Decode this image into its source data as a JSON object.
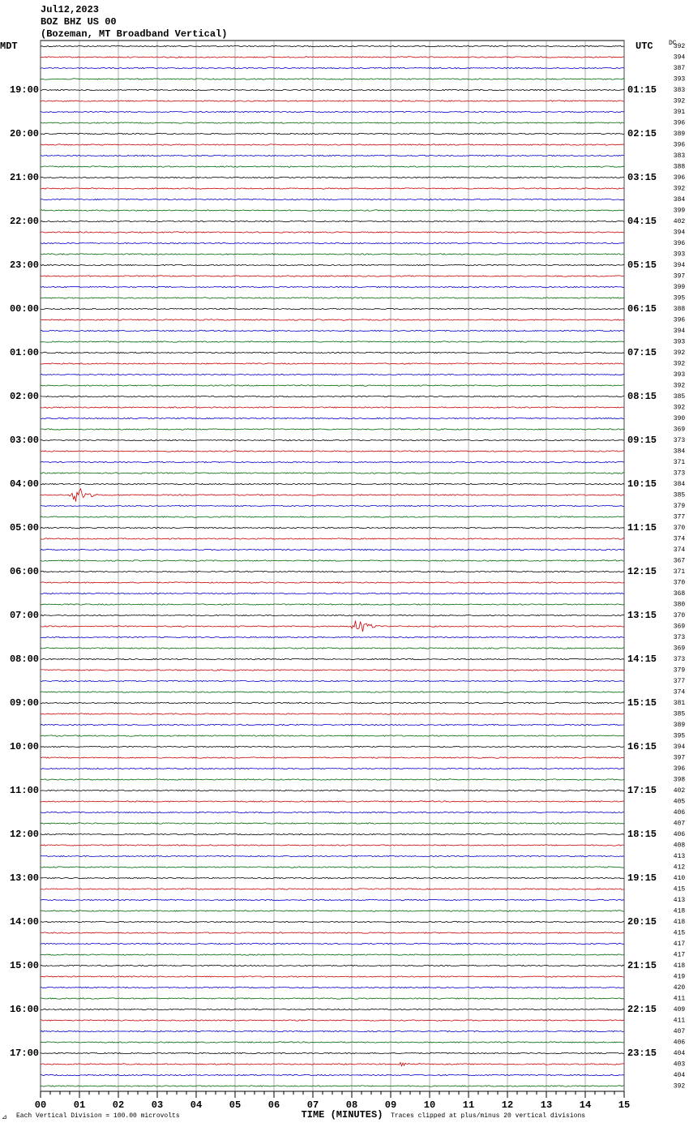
{
  "header": {
    "date": "Jul12,2023",
    "station": "BOZ BHZ US 00",
    "location": "(Bozeman, MT Broadband Vertical)"
  },
  "left_label": "MDT",
  "right_label": "UTC",
  "dc_label": "DC",
  "mdt_hours": [
    "19:00",
    "20:00",
    "21:00",
    "22:00",
    "23:00",
    "00:00",
    "01:00",
    "02:00",
    "03:00",
    "04:00",
    "05:00",
    "06:00",
    "07:00",
    "08:00",
    "09:00",
    "10:00",
    "11:00",
    "12:00",
    "13:00",
    "14:00",
    "15:00",
    "16:00",
    "17:00"
  ],
  "utc_hours": [
    "01:15",
    "02:15",
    "03:15",
    "04:15",
    "05:15",
    "06:15",
    "07:15",
    "08:15",
    "09:15",
    "10:15",
    "11:15",
    "12:15",
    "13:15",
    "14:15",
    "15:15",
    "16:15",
    "17:15",
    "18:15",
    "19:15",
    "20:15",
    "21:15",
    "22:15",
    "23:15"
  ],
  "dc_values": [
    392,
    394,
    387,
    393,
    383,
    392,
    391,
    396,
    389,
    396,
    383,
    388,
    396,
    392,
    384,
    399,
    402,
    394,
    396,
    393,
    394,
    397,
    399,
    395,
    388,
    396,
    394,
    393,
    392,
    392,
    393,
    392,
    385,
    392,
    390,
    369,
    373,
    384,
    371,
    373,
    384,
    385,
    379,
    377,
    370,
    374,
    374,
    367,
    371,
    370,
    368,
    380,
    370,
    369,
    373,
    369,
    373,
    379,
    377,
    374,
    381,
    385,
    389,
    395,
    394,
    397,
    396,
    398,
    402,
    405,
    406,
    407,
    406,
    408,
    413,
    412,
    410,
    415,
    413,
    418,
    418,
    415,
    417,
    417,
    418,
    419,
    420,
    411,
    409,
    411,
    407,
    406,
    404,
    403,
    404,
    392
  ],
  "x_ticks": [
    "00",
    "01",
    "02",
    "03",
    "04",
    "05",
    "06",
    "07",
    "08",
    "09",
    "10",
    "11",
    "12",
    "13",
    "14",
    "15"
  ],
  "x_axis_title": "TIME (MINUTES)",
  "footer_left": "Each Vertical Division =  100.00 microvolts",
  "footer_right": "Traces clipped at plus/minus 20 vertical divisions",
  "trace_colors": [
    "#000000",
    "#cc0000",
    "#0000cc",
    "#006600"
  ]
}
